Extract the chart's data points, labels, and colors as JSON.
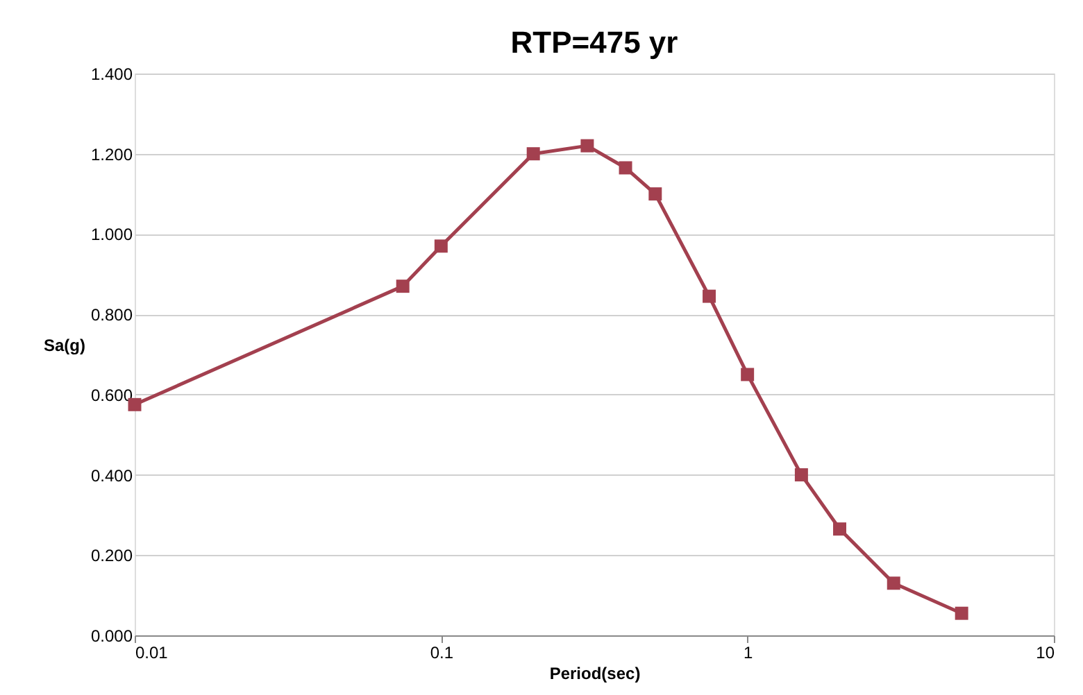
{
  "chart_data": {
    "type": "line",
    "title": "RTP=475 yr",
    "xlabel": "Period(sec)",
    "ylabel": "Sa(g)",
    "x": [
      0.01,
      0.075,
      0.1,
      0.2,
      0.3,
      0.4,
      0.5,
      0.75,
      1,
      1.5,
      2,
      3,
      5
    ],
    "series": [
      {
        "color": "#a3404f",
        "values": [
          0.575,
          0.87,
          0.97,
          1.2,
          1.22,
          1.165,
          1.1,
          0.845,
          0.65,
          0.4,
          0.265,
          0.13,
          0.055
        ]
      }
    ],
    "log": "x",
    "xlim": [
      0.01,
      10
    ],
    "xticks": [
      0.01,
      0.1,
      1,
      10
    ],
    "ylim": [
      0,
      1.4
    ],
    "yticks": [
      {
        "value": 0,
        "label": "0.000"
      },
      {
        "value": 0.2,
        "label": "0.200"
      },
      {
        "value": 0.4,
        "label": "0.400"
      },
      {
        "value": 0.6,
        "label": "0.600"
      },
      {
        "value": 0.8,
        "label": "0.800"
      },
      {
        "value": 1.0,
        "label": "1.000"
      },
      {
        "value": 1.2,
        "label": "1.200"
      },
      {
        "value": 1.4,
        "label": "1.400"
      }
    ],
    "grid": "y",
    "marker": "square",
    "line_style": "solid"
  }
}
